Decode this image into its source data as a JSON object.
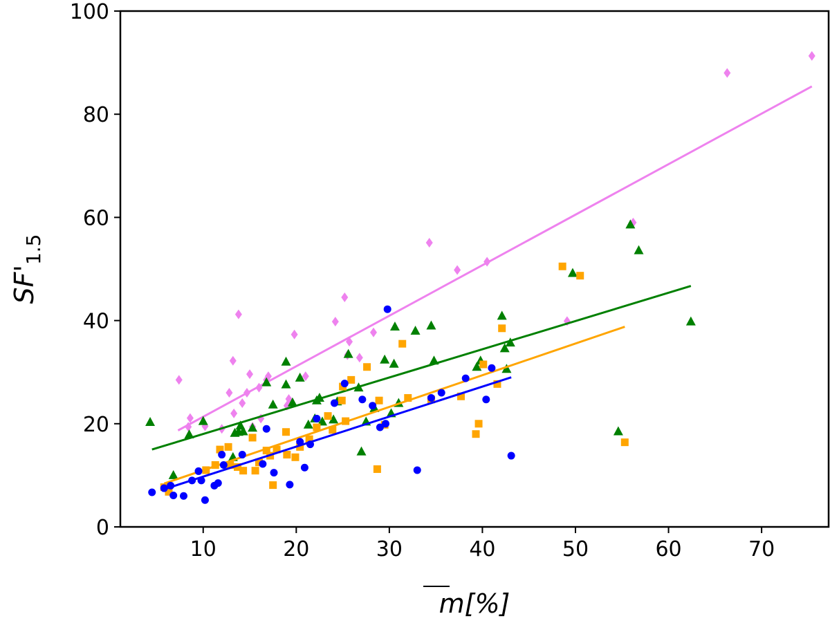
{
  "chart_data": {
    "type": "scatter",
    "title": "",
    "xlabel": "m[%]",
    "ylabel_main": "SF'",
    "ylabel_sub": "1.5",
    "xlim": [
      1.1,
      77.2
    ],
    "ylim": [
      0,
      100
    ],
    "xticks": [
      10,
      20,
      30,
      40,
      50,
      60,
      70
    ],
    "yticks": [
      0,
      20,
      40,
      60,
      80,
      100
    ],
    "grid": false,
    "legend": "none",
    "series": [
      {
        "name": "violet",
        "marker": "diamond",
        "color": "#ee82ee",
        "fit": {
          "x": [
            7.3,
            75.4
          ],
          "y": [
            18.7,
            85.4
          ]
        },
        "points": [
          [
            7.4,
            28.5
          ],
          [
            8.4,
            19.4
          ],
          [
            8.6,
            21.1
          ],
          [
            10.2,
            19.5
          ],
          [
            12.0,
            19.0
          ],
          [
            12.8,
            26.0
          ],
          [
            13.2,
            32.2
          ],
          [
            13.3,
            22.0
          ],
          [
            13.8,
            41.2
          ],
          [
            14.2,
            24.0
          ],
          [
            14.7,
            26.0
          ],
          [
            15.0,
            29.6
          ],
          [
            15.3,
            19.4
          ],
          [
            16.0,
            27.0
          ],
          [
            16.2,
            21.0
          ],
          [
            16.8,
            28.5
          ],
          [
            17.0,
            29.2
          ],
          [
            19.0,
            23.5
          ],
          [
            19.2,
            24.8
          ],
          [
            19.8,
            37.3
          ],
          [
            21.0,
            29.2
          ],
          [
            24.2,
            39.8
          ],
          [
            25.2,
            44.5
          ],
          [
            25.5,
            33.3
          ],
          [
            25.7,
            35.9
          ],
          [
            26.8,
            32.8
          ],
          [
            28.3,
            37.7
          ],
          [
            34.3,
            55.1
          ],
          [
            37.3,
            49.8
          ],
          [
            40.5,
            51.4
          ],
          [
            49.1,
            39.9
          ],
          [
            56.2,
            59.0
          ],
          [
            66.3,
            88.0
          ],
          [
            75.4,
            91.3
          ]
        ]
      },
      {
        "name": "green",
        "marker": "triangle",
        "color": "#008000",
        "fit": {
          "x": [
            4.5,
            62.4
          ],
          "y": [
            15.0,
            46.7
          ]
        },
        "points": [
          [
            4.3,
            20.3
          ],
          [
            6.8,
            10.0
          ],
          [
            8.5,
            17.9
          ],
          [
            10.0,
            20.5
          ],
          [
            13.2,
            13.5
          ],
          [
            13.4,
            18.2
          ],
          [
            13.8,
            18.4
          ],
          [
            14.0,
            19.6
          ],
          [
            14.3,
            18.5
          ],
          [
            15.3,
            19.2
          ],
          [
            16.8,
            28.0
          ],
          [
            17.5,
            23.7
          ],
          [
            18.9,
            32.0
          ],
          [
            18.9,
            27.6
          ],
          [
            19.6,
            24.1
          ],
          [
            20.4,
            28.9
          ],
          [
            21.3,
            19.8
          ],
          [
            22.0,
            21.0
          ],
          [
            22.2,
            24.5
          ],
          [
            22.5,
            25.0
          ],
          [
            22.8,
            20.4
          ],
          [
            24.0,
            20.8
          ],
          [
            24.4,
            24.3
          ],
          [
            25.6,
            33.5
          ],
          [
            26.7,
            27.0
          ],
          [
            27.0,
            14.6
          ],
          [
            27.5,
            20.4
          ],
          [
            28.4,
            23.0
          ],
          [
            29.5,
            32.4
          ],
          [
            30.2,
            22.0
          ],
          [
            30.5,
            31.6
          ],
          [
            30.6,
            38.8
          ],
          [
            31.0,
            24.0
          ],
          [
            32.8,
            38.0
          ],
          [
            34.5,
            39.0
          ],
          [
            34.8,
            32.2
          ],
          [
            39.4,
            31.0
          ],
          [
            39.8,
            32.2
          ],
          [
            42.1,
            40.9
          ],
          [
            42.4,
            34.6
          ],
          [
            42.6,
            30.6
          ],
          [
            43.0,
            35.7
          ],
          [
            49.7,
            49.2
          ],
          [
            54.6,
            18.5
          ],
          [
            55.9,
            58.6
          ],
          [
            56.8,
            53.6
          ],
          [
            62.4,
            39.8
          ]
        ]
      },
      {
        "name": "orange",
        "marker": "square",
        "color": "#ffa500",
        "fit": {
          "x": [
            5.8,
            55.3
          ],
          "y": [
            8.4,
            38.8
          ]
        },
        "points": [
          [
            5.8,
            7.7
          ],
          [
            6.3,
            6.8
          ],
          [
            10.3,
            11.0
          ],
          [
            11.3,
            12.0
          ],
          [
            11.8,
            15.0
          ],
          [
            12.7,
            15.5
          ],
          [
            12.9,
            12.0
          ],
          [
            13.7,
            11.6
          ],
          [
            14.3,
            10.9
          ],
          [
            15.3,
            17.3
          ],
          [
            15.6,
            10.9
          ],
          [
            16.0,
            12.5
          ],
          [
            16.8,
            14.8
          ],
          [
            17.2,
            13.8
          ],
          [
            17.5,
            8.1
          ],
          [
            17.9,
            15.0
          ],
          [
            18.9,
            18.4
          ],
          [
            19.0,
            14.0
          ],
          [
            19.9,
            13.5
          ],
          [
            20.4,
            15.5
          ],
          [
            21.4,
            17.0
          ],
          [
            22.2,
            19.3
          ],
          [
            23.4,
            21.5
          ],
          [
            23.9,
            18.8
          ],
          [
            24.9,
            24.5
          ],
          [
            25.0,
            27.2
          ],
          [
            25.3,
            20.5
          ],
          [
            25.9,
            28.5
          ],
          [
            27.6,
            31.0
          ],
          [
            28.7,
            11.2
          ],
          [
            28.9,
            24.5
          ],
          [
            29.5,
            19.8
          ],
          [
            31.4,
            35.5
          ],
          [
            32.0,
            25.0
          ],
          [
            34.5,
            24.7
          ],
          [
            37.7,
            25.3
          ],
          [
            39.3,
            18.0
          ],
          [
            39.6,
            20.0
          ],
          [
            40.1,
            31.5
          ],
          [
            41.6,
            27.7
          ],
          [
            42.1,
            38.5
          ],
          [
            48.6,
            50.5
          ],
          [
            50.5,
            48.7
          ],
          [
            55.3,
            16.4
          ]
        ]
      },
      {
        "name": "blue",
        "marker": "circle",
        "color": "#0000ff",
        "fit": {
          "x": [
            5.8,
            43.1
          ],
          "y": [
            7.3,
            29.0
          ]
        },
        "points": [
          [
            4.5,
            6.7
          ],
          [
            5.8,
            7.5
          ],
          [
            6.5,
            8.0
          ],
          [
            6.8,
            6.1
          ],
          [
            7.9,
            6.0
          ],
          [
            8.8,
            9.0
          ],
          [
            9.5,
            10.8
          ],
          [
            9.8,
            9.0
          ],
          [
            10.2,
            5.2
          ],
          [
            11.2,
            8.0
          ],
          [
            11.6,
            8.5
          ],
          [
            12.0,
            14.0
          ],
          [
            12.2,
            12.0
          ],
          [
            14.2,
            14.0
          ],
          [
            16.4,
            12.2
          ],
          [
            16.8,
            19.0
          ],
          [
            17.6,
            10.5
          ],
          [
            19.3,
            8.2
          ],
          [
            20.4,
            16.5
          ],
          [
            20.9,
            11.5
          ],
          [
            21.5,
            16.0
          ],
          [
            22.2,
            21.0
          ],
          [
            24.1,
            24.0
          ],
          [
            25.2,
            27.8
          ],
          [
            27.1,
            24.7
          ],
          [
            28.2,
            23.5
          ],
          [
            29.0,
            19.3
          ],
          [
            29.6,
            20.0
          ],
          [
            29.8,
            42.2
          ],
          [
            33.0,
            11.0
          ],
          [
            34.5,
            25.0
          ],
          [
            35.6,
            26.0
          ],
          [
            38.2,
            28.8
          ],
          [
            40.4,
            24.7
          ],
          [
            41.0,
            30.8
          ],
          [
            43.1,
            13.8
          ]
        ]
      }
    ]
  }
}
